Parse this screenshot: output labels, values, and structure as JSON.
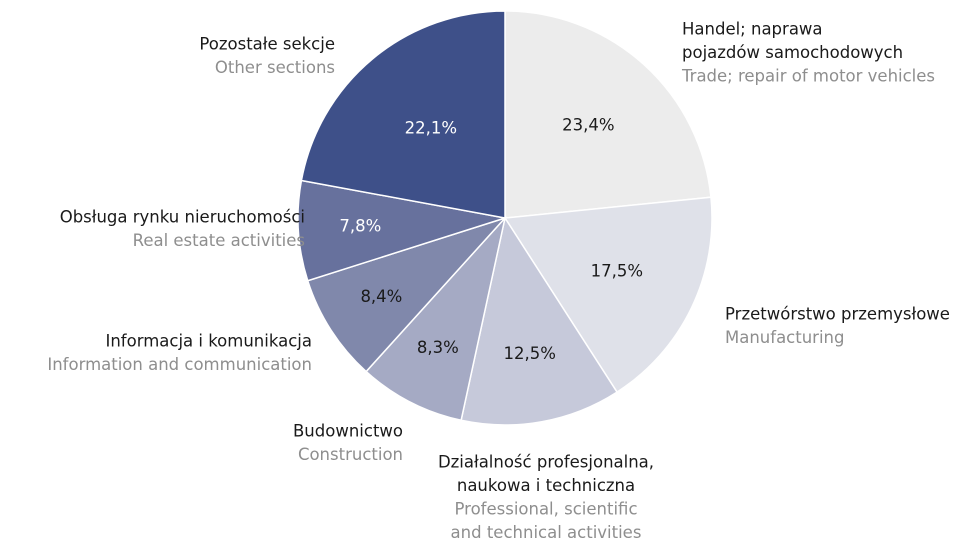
{
  "chart_data": {
    "type": "pie",
    "categories": [
      [
        "Handel; naprawa",
        "pojazdów samochodowych"
      ],
      [
        "Przetwórstwo przemysłowe"
      ],
      [
        "Działalność profesjonalna,",
        "naukowa i techniczna"
      ],
      [
        "Budownictwo"
      ],
      [
        "Informacja i komunikacja"
      ],
      [
        "Obsługa rynku nieruchomości"
      ],
      [
        "Pozostałe sekcje"
      ]
    ],
    "categories_en": [
      [
        "Trade; repair of motor vehicles"
      ],
      [
        "Manufacturing"
      ],
      [
        "Professional, scientific",
        "and technical activities"
      ],
      [
        "Construction"
      ],
      [
        "Information and communication"
      ],
      [
        "Real estate activities"
      ],
      [
        "Other sections"
      ]
    ],
    "values": [
      23.4,
      17.5,
      12.5,
      8.3,
      8.4,
      7.8,
      22.1
    ],
    "value_labels": [
      "23,4%",
      "17,5%",
      "12,5%",
      "8,3%",
      "8,4%",
      "7,8%",
      "22,1%"
    ],
    "colors": [
      "#ececec",
      "#dfe1e9",
      "#c6c9da",
      "#a5aac4",
      "#8088ab",
      "#67719d",
      "#3e5089"
    ]
  }
}
